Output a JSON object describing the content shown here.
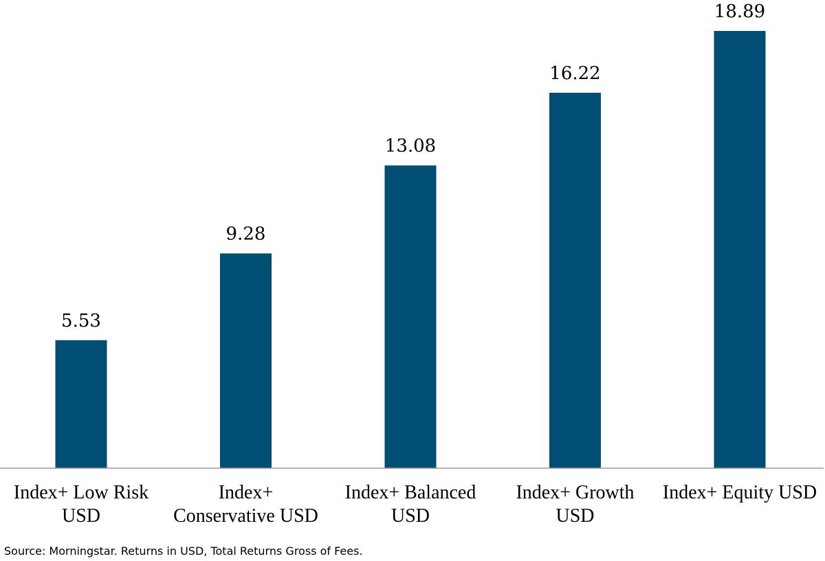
{
  "chart_data": {
    "type": "bar",
    "title": "",
    "xlabel": "",
    "ylabel": "",
    "categories": [
      [
        "Index+ Low Risk",
        "USD"
      ],
      [
        "Index+",
        "Conservative USD"
      ],
      [
        "Index+ Balanced",
        "USD"
      ],
      [
        "Index+ Growth",
        "USD"
      ],
      [
        "Index+ Equity USD"
      ]
    ],
    "values": [
      5.53,
      9.28,
      13.08,
      16.22,
      18.89
    ],
    "value_labels": [
      "5.53",
      "9.28",
      "13.08",
      "16.22",
      "18.89"
    ],
    "ylim": [
      0,
      18.89
    ],
    "grid": false,
    "legend": "none",
    "bar_color": "#004e74"
  },
  "footer": {
    "source": "Source: Morningstar. Returns in USD, Total Returns Gross of Fees."
  }
}
